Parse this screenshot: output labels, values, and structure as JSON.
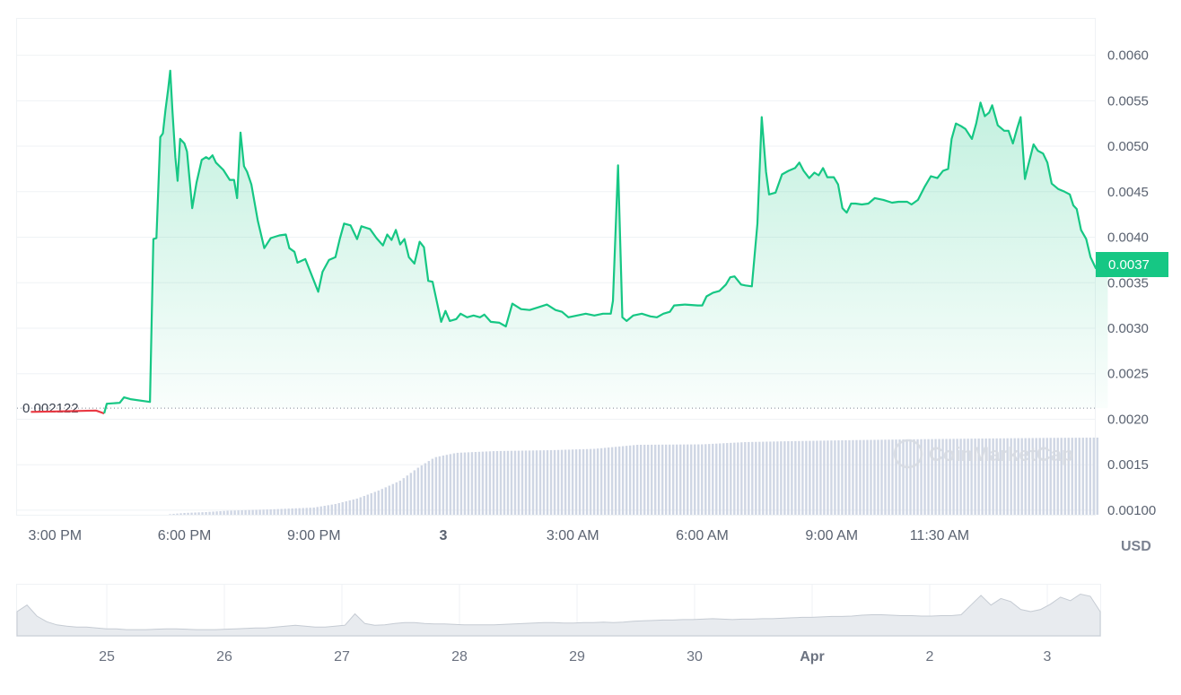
{
  "chart_data": {
    "type": "line",
    "currency_unit": "USD",
    "baseline_value": 0.002122,
    "baseline_label": "0.002122",
    "current_price": 0.0037,
    "current_price_label": "0.0037",
    "watermark": "CoinMarketCap",
    "y_ticks": [
      "0.0060",
      "0.0055",
      "0.0050",
      "0.0045",
      "0.0040",
      "0.0035",
      "0.0030",
      "0.0025",
      "0.0020",
      "0.0015",
      "0.00100"
    ],
    "y_range": [
      0.00095,
      0.0064
    ],
    "x_range_hours": [
      -0.88,
      24.1
    ],
    "x_ticks": [
      {
        "label": "3:00 PM",
        "hours": 0,
        "bold": false
      },
      {
        "label": "6:00 PM",
        "hours": 3,
        "bold": false
      },
      {
        "label": "9:00 PM",
        "hours": 6,
        "bold": false
      },
      {
        "label": "3",
        "hours": 9,
        "bold": true
      },
      {
        "label": "3:00 AM",
        "hours": 12,
        "bold": false
      },
      {
        "label": "6:00 AM",
        "hours": 15,
        "bold": false
      },
      {
        "label": "9:00 AM",
        "hours": 18,
        "bold": false
      },
      {
        "label": "11:30 AM",
        "hours": 20.5,
        "bold": false
      }
    ],
    "colors": {
      "up": "#16c784",
      "down": "#ea3943",
      "volume": "#cfd6e4",
      "grid": "#eff2f5"
    },
    "price_series": [
      [
        -0.56,
        0.00208
      ],
      [
        0,
        0.002085
      ],
      [
        0.5,
        0.00209
      ],
      [
        0.95,
        0.002095
      ],
      [
        1.1,
        0.00207
      ],
      [
        1.14,
        0.002065
      ],
      [
        1.2,
        0.00217
      ],
      [
        1.5,
        0.00218
      ],
      [
        1.6,
        0.00224
      ],
      [
        1.75,
        0.00222
      ],
      [
        2.2,
        0.00219
      ],
      [
        2.28,
        0.00398
      ],
      [
        2.35,
        0.00399
      ],
      [
        2.44,
        0.0051
      ],
      [
        2.5,
        0.00514
      ],
      [
        2.56,
        0.0054
      ],
      [
        2.62,
        0.00562
      ],
      [
        2.67,
        0.00583
      ],
      [
        2.72,
        0.0054
      ],
      [
        2.79,
        0.00488
      ],
      [
        2.84,
        0.00462
      ],
      [
        2.9,
        0.00508
      ],
      [
        3.0,
        0.00503
      ],
      [
        3.06,
        0.00494
      ],
      [
        3.18,
        0.00432
      ],
      [
        3.28,
        0.0046
      ],
      [
        3.4,
        0.00485
      ],
      [
        3.5,
        0.00488
      ],
      [
        3.57,
        0.00486
      ],
      [
        3.65,
        0.0049
      ],
      [
        3.73,
        0.00482
      ],
      [
        3.9,
        0.00474
      ],
      [
        4.05,
        0.00463
      ],
      [
        4.15,
        0.00463
      ],
      [
        4.22,
        0.00443
      ],
      [
        4.3,
        0.00515
      ],
      [
        4.38,
        0.00478
      ],
      [
        4.45,
        0.00472
      ],
      [
        4.55,
        0.00458
      ],
      [
        4.7,
        0.00418
      ],
      [
        4.85,
        0.00388
      ],
      [
        5.0,
        0.00399
      ],
      [
        5.2,
        0.00402
      ],
      [
        5.35,
        0.00403
      ],
      [
        5.43,
        0.00388
      ],
      [
        5.55,
        0.00384
      ],
      [
        5.62,
        0.00372
      ],
      [
        5.8,
        0.00376
      ],
      [
        6.0,
        0.00352
      ],
      [
        6.1,
        0.0034
      ],
      [
        6.2,
        0.00362
      ],
      [
        6.35,
        0.00375
      ],
      [
        6.5,
        0.00378
      ],
      [
        6.6,
        0.00398
      ],
      [
        6.7,
        0.00415
      ],
      [
        6.85,
        0.00413
      ],
      [
        7.0,
        0.00398
      ],
      [
        7.1,
        0.00412
      ],
      [
        7.3,
        0.00409
      ],
      [
        7.45,
        0.00399
      ],
      [
        7.6,
        0.00391
      ],
      [
        7.7,
        0.00403
      ],
      [
        7.8,
        0.00397
      ],
      [
        7.9,
        0.00408
      ],
      [
        8.0,
        0.00392
      ],
      [
        8.1,
        0.00398
      ],
      [
        8.2,
        0.00378
      ],
      [
        8.33,
        0.00371
      ],
      [
        8.45,
        0.00395
      ],
      [
        8.55,
        0.00389
      ],
      [
        8.65,
        0.00352
      ],
      [
        8.75,
        0.00351
      ],
      [
        8.95,
        0.00307
      ],
      [
        9.05,
        0.00319
      ],
      [
        9.15,
        0.00308
      ],
      [
        9.3,
        0.0031
      ],
      [
        9.4,
        0.00316
      ],
      [
        9.55,
        0.00312
      ],
      [
        9.7,
        0.00314
      ],
      [
        9.85,
        0.00312
      ],
      [
        9.95,
        0.00315
      ],
      [
        10.1,
        0.00307
      ],
      [
        10.3,
        0.00306
      ],
      [
        10.45,
        0.00302
      ],
      [
        10.6,
        0.00327
      ],
      [
        10.8,
        0.00321
      ],
      [
        11.0,
        0.0032
      ],
      [
        11.2,
        0.00323
      ],
      [
        11.4,
        0.00326
      ],
      [
        11.6,
        0.0032
      ],
      [
        11.75,
        0.00318
      ],
      [
        11.9,
        0.00312
      ],
      [
        12.1,
        0.00314
      ],
      [
        12.3,
        0.00316
      ],
      [
        12.5,
        0.00314
      ],
      [
        12.7,
        0.00316
      ],
      [
        12.88,
        0.00316
      ],
      [
        12.93,
        0.0033
      ],
      [
        13.05,
        0.00479
      ],
      [
        13.15,
        0.00312
      ],
      [
        13.25,
        0.00308
      ],
      [
        13.4,
        0.00314
      ],
      [
        13.6,
        0.00316
      ],
      [
        13.8,
        0.00313
      ],
      [
        13.95,
        0.00312
      ],
      [
        14.1,
        0.00316
      ],
      [
        14.25,
        0.00318
      ],
      [
        14.35,
        0.00325
      ],
      [
        14.6,
        0.00326
      ],
      [
        14.9,
        0.00325
      ],
      [
        15.0,
        0.00325
      ],
      [
        15.1,
        0.00335
      ],
      [
        15.25,
        0.00339
      ],
      [
        15.4,
        0.00341
      ],
      [
        15.55,
        0.00348
      ],
      [
        15.65,
        0.00356
      ],
      [
        15.75,
        0.00357
      ],
      [
        15.9,
        0.00348
      ],
      [
        16.0,
        0.00347
      ],
      [
        16.15,
        0.00346
      ],
      [
        16.28,
        0.00415
      ],
      [
        16.38,
        0.00532
      ],
      [
        16.48,
        0.00472
      ],
      [
        16.55,
        0.00447
      ],
      [
        16.7,
        0.00449
      ],
      [
        16.85,
        0.00469
      ],
      [
        17.0,
        0.00473
      ],
      [
        17.15,
        0.00476
      ],
      [
        17.25,
        0.00482
      ],
      [
        17.35,
        0.00473
      ],
      [
        17.48,
        0.00465
      ],
      [
        17.6,
        0.00471
      ],
      [
        17.7,
        0.00468
      ],
      [
        17.8,
        0.00476
      ],
      [
        17.9,
        0.00466
      ],
      [
        18.05,
        0.00466
      ],
      [
        18.15,
        0.00458
      ],
      [
        18.25,
        0.00432
      ],
      [
        18.35,
        0.00427
      ],
      [
        18.45,
        0.00437
      ],
      [
        18.55,
        0.00437
      ],
      [
        18.7,
        0.00436
      ],
      [
        18.85,
        0.00437
      ],
      [
        19.0,
        0.00443
      ],
      [
        19.2,
        0.00441
      ],
      [
        19.4,
        0.00438
      ],
      [
        19.55,
        0.00439
      ],
      [
        19.75,
        0.00439
      ],
      [
        19.85,
        0.00436
      ],
      [
        20.0,
        0.00441
      ],
      [
        20.15,
        0.00455
      ],
      [
        20.3,
        0.00467
      ],
      [
        20.45,
        0.00465
      ],
      [
        20.58,
        0.00473
      ],
      [
        20.7,
        0.00475
      ],
      [
        20.78,
        0.00508
      ],
      [
        20.88,
        0.00525
      ],
      [
        21.0,
        0.00522
      ],
      [
        21.1,
        0.00519
      ],
      [
        21.25,
        0.00508
      ],
      [
        21.35,
        0.00525
      ],
      [
        21.45,
        0.00548
      ],
      [
        21.55,
        0.00533
      ],
      [
        21.65,
        0.00537
      ],
      [
        21.72,
        0.00545
      ],
      [
        21.85,
        0.00523
      ],
      [
        22.0,
        0.00517
      ],
      [
        22.1,
        0.00517
      ],
      [
        22.2,
        0.00503
      ],
      [
        22.3,
        0.0052
      ],
      [
        22.38,
        0.00532
      ],
      [
        22.48,
        0.00464
      ],
      [
        22.55,
        0.00478
      ],
      [
        22.68,
        0.00502
      ],
      [
        22.78,
        0.00495
      ],
      [
        22.9,
        0.00492
      ],
      [
        23.0,
        0.00482
      ],
      [
        23.1,
        0.00459
      ],
      [
        23.25,
        0.00453
      ],
      [
        23.4,
        0.0045
      ],
      [
        23.52,
        0.00447
      ],
      [
        23.6,
        0.00435
      ],
      [
        23.68,
        0.00431
      ],
      [
        23.78,
        0.00408
      ],
      [
        23.9,
        0.00398
      ],
      [
        24.0,
        0.00378
      ],
      [
        24.12,
        0.00366
      ],
      [
        24.22,
        0.0037
      ],
      [
        24.28,
        0.00381
      ],
      [
        24.4,
        0.0037
      ]
    ],
    "volume_series": [
      [
        2.5,
        0.0
      ],
      [
        3.0,
        0.02
      ],
      [
        3.5,
        0.03
      ],
      [
        4.0,
        0.045
      ],
      [
        5.0,
        0.06
      ],
      [
        6.0,
        0.08
      ],
      [
        6.5,
        0.12
      ],
      [
        7.0,
        0.18
      ],
      [
        7.5,
        0.27
      ],
      [
        8.0,
        0.38
      ],
      [
        8.4,
        0.52
      ],
      [
        8.8,
        0.64
      ],
      [
        9.3,
        0.69
      ],
      [
        10.2,
        0.71
      ],
      [
        11.5,
        0.72
      ],
      [
        12.5,
        0.735
      ],
      [
        13.5,
        0.78
      ],
      [
        15.0,
        0.785
      ],
      [
        16.0,
        0.81
      ],
      [
        17.0,
        0.82
      ],
      [
        18.5,
        0.832
      ],
      [
        20.0,
        0.842
      ],
      [
        21.5,
        0.85
      ],
      [
        23.0,
        0.857
      ],
      [
        24.2,
        0.86
      ]
    ],
    "navigator": {
      "ticks": [
        {
          "label": "25",
          "bold": false
        },
        {
          "label": "26",
          "bold": false
        },
        {
          "label": "27",
          "bold": false
        },
        {
          "label": "28",
          "bold": false
        },
        {
          "label": "29",
          "bold": false
        },
        {
          "label": "30",
          "bold": false
        },
        {
          "label": "Apr",
          "bold": true
        },
        {
          "label": "2",
          "bold": false
        },
        {
          "label": "3",
          "bold": false
        }
      ],
      "series": [
        0.55,
        0.7,
        0.45,
        0.32,
        0.25,
        0.22,
        0.2,
        0.2,
        0.18,
        0.16,
        0.16,
        0.14,
        0.14,
        0.14,
        0.15,
        0.16,
        0.16,
        0.15,
        0.14,
        0.14,
        0.14,
        0.15,
        0.16,
        0.17,
        0.18,
        0.18,
        0.2,
        0.22,
        0.24,
        0.22,
        0.2,
        0.2,
        0.22,
        0.24,
        0.5,
        0.28,
        0.24,
        0.25,
        0.28,
        0.3,
        0.3,
        0.28,
        0.27,
        0.27,
        0.26,
        0.25,
        0.25,
        0.25,
        0.25,
        0.26,
        0.27,
        0.28,
        0.29,
        0.3,
        0.3,
        0.29,
        0.29,
        0.3,
        0.3,
        0.31,
        0.3,
        0.31,
        0.33,
        0.34,
        0.35,
        0.36,
        0.36,
        0.37,
        0.37,
        0.38,
        0.39,
        0.38,
        0.37,
        0.38,
        0.38,
        0.39,
        0.39,
        0.4,
        0.41,
        0.42,
        0.42,
        0.43,
        0.44,
        0.44,
        0.45,
        0.47,
        0.48,
        0.48,
        0.47,
        0.46,
        0.46,
        0.45,
        0.45,
        0.46,
        0.46,
        0.48,
        0.7,
        0.92,
        0.7,
        0.85,
        0.78,
        0.6,
        0.55,
        0.6,
        0.72,
        0.88,
        0.8,
        0.95,
        0.9,
        0.55
      ]
    }
  }
}
